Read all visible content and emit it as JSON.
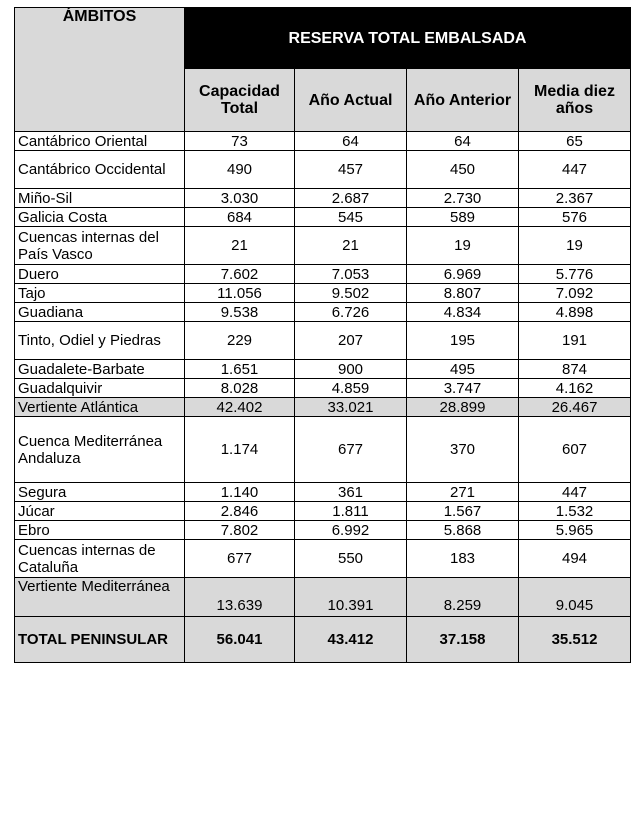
{
  "table": {
    "ambitos_label": "ÁMBITOS",
    "main_header": "RESERVA TOTAL EMBALSADA",
    "columns": [
      "Capacidad Total",
      "Año Actual",
      "Año Anterior",
      "Media diez años"
    ],
    "rows": [
      {
        "name": "Cantábrico Oriental",
        "values": [
          "73",
          "64",
          "64",
          "65"
        ],
        "kind": "normal"
      },
      {
        "name": "Cantábrico Occidental",
        "values": [
          "490",
          "457",
          "450",
          "447"
        ],
        "kind": "normal"
      },
      {
        "name": "Miño-Sil",
        "values": [
          "3.030",
          "2.687",
          "2.730",
          "2.367"
        ],
        "kind": "normal"
      },
      {
        "name": "Galicia Costa",
        "values": [
          "684",
          "545",
          "589",
          "576"
        ],
        "kind": "normal"
      },
      {
        "name": "Cuencas internas del País Vasco",
        "values": [
          "21",
          "21",
          "19",
          "19"
        ],
        "kind": "normal"
      },
      {
        "name": "Duero",
        "values": [
          "7.602",
          "7.053",
          "6.969",
          "5.776"
        ],
        "kind": "normal"
      },
      {
        "name": "Tajo",
        "values": [
          "11.056",
          "9.502",
          "8.807",
          "7.092"
        ],
        "kind": "normal"
      },
      {
        "name": "Guadiana",
        "values": [
          "9.538",
          "6.726",
          "4.834",
          "4.898"
        ],
        "kind": "normal"
      },
      {
        "name": "Tinto, Odiel y Piedras",
        "values": [
          "229",
          "207",
          "195",
          "191"
        ],
        "kind": "normal"
      },
      {
        "name": "Guadalete-Barbate",
        "values": [
          "1.651",
          "900",
          "495",
          "874"
        ],
        "kind": "normal"
      },
      {
        "name": "Guadalquivir",
        "values": [
          "8.028",
          "4.859",
          "3.747",
          "4.162"
        ],
        "kind": "normal"
      },
      {
        "name": "Vertiente Atlántica",
        "values": [
          "42.402",
          "33.021",
          "28.899",
          "26.467"
        ],
        "kind": "subtotal"
      },
      {
        "name": "Cuenca Mediterránea Andaluza",
        "values": [
          "1.174",
          "677",
          "370",
          "607"
        ],
        "kind": "normal"
      },
      {
        "name": "Segura",
        "values": [
          "1.140",
          "361",
          "271",
          "447"
        ],
        "kind": "normal"
      },
      {
        "name": "Júcar",
        "values": [
          "2.846",
          "1.811",
          "1.567",
          "1.532"
        ],
        "kind": "normal"
      },
      {
        "name": "Ebro",
        "values": [
          "7.802",
          "6.992",
          "5.868",
          "5.965"
        ],
        "kind": "normal"
      },
      {
        "name": "Cuencas internas de Cataluña",
        "values": [
          "677",
          "550",
          "183",
          "494"
        ],
        "kind": "normal"
      },
      {
        "name": "Vertiente Mediterránea",
        "values": [
          "13.639",
          "10.391",
          "8.259",
          "9.045"
        ],
        "kind": "subtotal"
      },
      {
        "name": "TOTAL PENINSULAR",
        "values": [
          "56.041",
          "43.412",
          "37.158",
          "35.512"
        ],
        "kind": "total"
      }
    ]
  }
}
